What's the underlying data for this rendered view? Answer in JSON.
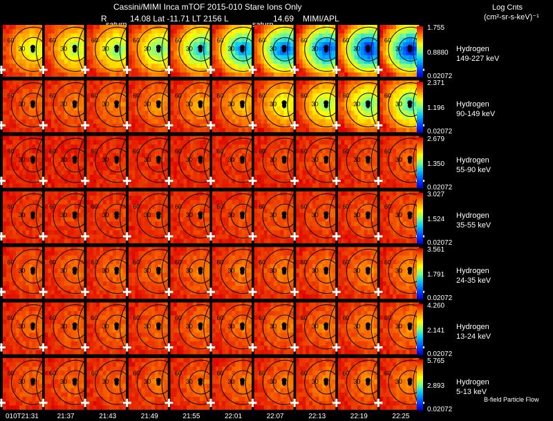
{
  "header": {
    "title": "Cassini/MIMI Inca mTOF  2015-010    Stare    Ions Only",
    "r_label": "R",
    "saturn_label_left": "saturn",
    "info": "14.08 Lat -11.71 LT 2156 L",
    "saturn_label_right": "saturn",
    "l_value": "14.69",
    "institution": "MIMI/APL",
    "units_line1": "Log Cnts",
    "units_line2": "(cm²-sr-s-keV)⁻¹"
  },
  "rows": [
    {
      "species": "Hydrogen",
      "energy": "149-227 keV",
      "max": "1.755",
      "mid": "0.8880",
      "min": "0.02072"
    },
    {
      "species": "Hydrogen",
      "energy": "90-149 keV",
      "max": "2.371",
      "mid": "1.196",
      "min": "0.02072"
    },
    {
      "species": "Hydrogen",
      "energy": "55-90 keV",
      "max": "2.679",
      "mid": "1.350",
      "min": "0.02072"
    },
    {
      "species": "Hydrogen",
      "energy": "35-55 keV",
      "max": "3.027",
      "mid": "1.524",
      "min": "0.02072"
    },
    {
      "species": "Hydrogen",
      "energy": "24-35 keV",
      "max": "3.561",
      "mid": "1.791",
      "min": "0.02072"
    },
    {
      "species": "Hydrogen",
      "energy": "13-24 keV",
      "max": "4.260",
      "mid": "2.141",
      "min": "0.02072"
    },
    {
      "species": "Hydrogen",
      "energy": "5-13 keV",
      "max": "5.765",
      "mid": "2.893",
      "min": "0.02072"
    }
  ],
  "times": [
    "010T21:31",
    "21:37",
    "21:43",
    "21:49",
    "21:55",
    "22:01",
    "22:07",
    "22:13",
    "22:19",
    "22:25"
  ],
  "ring_labels": [
    "60",
    "30"
  ],
  "footer_note": "B-field  Particle Flow",
  "row_intensity": [
    [
      0.35,
      0.38,
      0.42,
      0.45,
      0.55,
      0.65,
      0.72,
      0.75,
      0.8,
      0.8
    ],
    [
      0.1,
      0.12,
      0.14,
      0.16,
      0.18,
      0.22,
      0.32,
      0.4,
      0.45,
      0.5
    ],
    [
      0.02,
      0.02,
      0.03,
      0.03,
      0.04,
      0.05,
      0.06,
      0.07,
      0.08,
      0.09
    ],
    [
      0.05,
      0.05,
      0.06,
      0.06,
      0.07,
      0.07,
      0.08,
      0.08,
      0.09,
      0.1
    ],
    [
      0.1,
      0.1,
      0.11,
      0.11,
      0.12,
      0.12,
      0.13,
      0.13,
      0.14,
      0.15
    ],
    [
      0.1,
      0.1,
      0.11,
      0.11,
      0.12,
      0.12,
      0.13,
      0.13,
      0.14,
      0.15
    ],
    [
      0.09,
      0.1,
      0.1,
      0.11,
      0.11,
      0.12,
      0.12,
      0.13,
      0.13,
      0.14
    ]
  ]
}
